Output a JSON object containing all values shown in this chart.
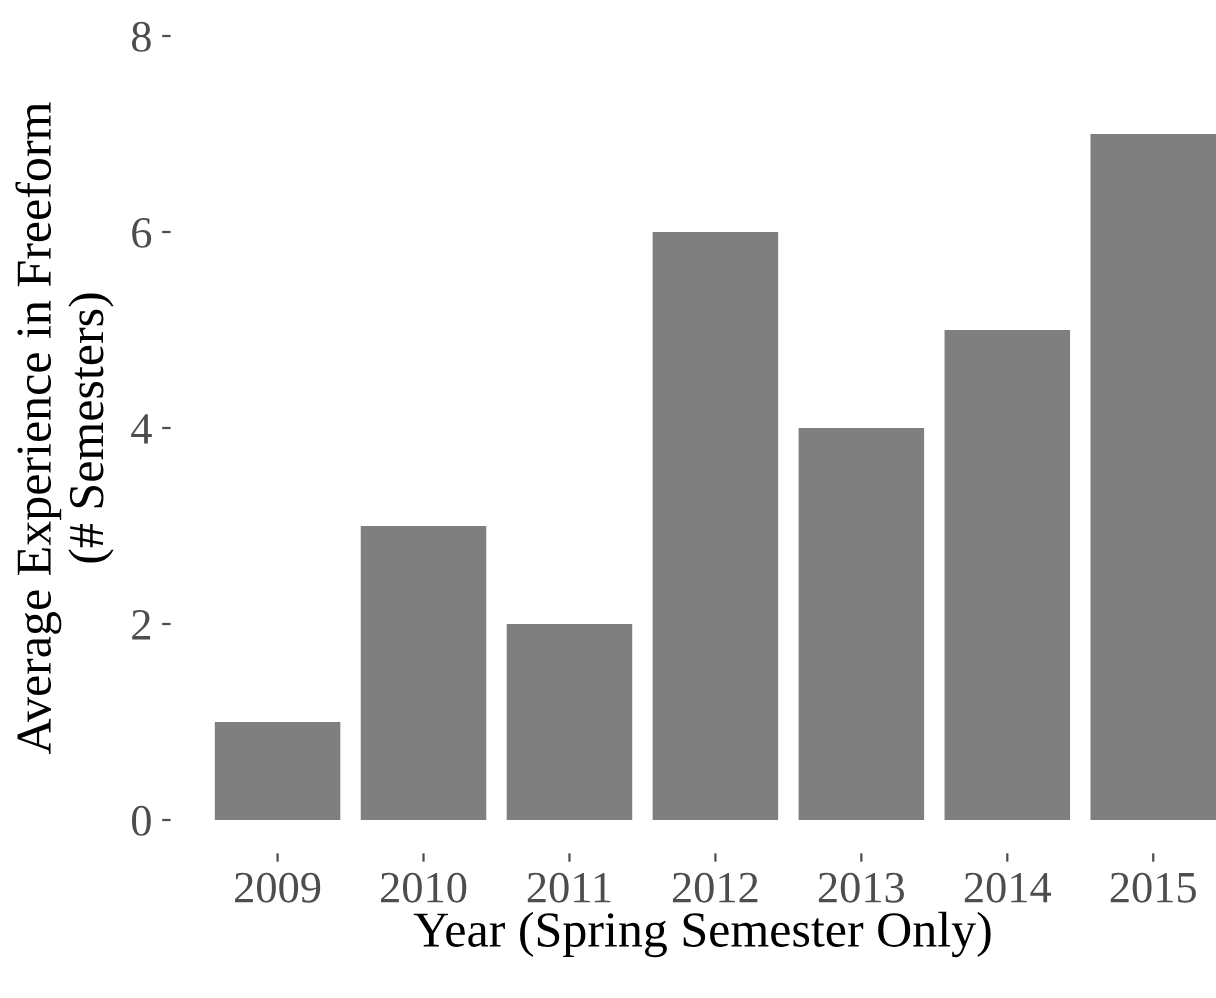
{
  "chart_data": {
    "type": "bar",
    "xlabel": "Year (Spring Semester Only)",
    "ylabel": "Average Experience in Freeform\n(# Semesters)",
    "categories": [
      "2009",
      "2010",
      "2011",
      "2012",
      "2013",
      "2014",
      "2015"
    ],
    "values": [
      1,
      3,
      2,
      6,
      4,
      5,
      7
    ],
    "color": "#7f7f7f",
    "ylim": [
      0,
      8
    ],
    "yticks": [
      0,
      2,
      4,
      6,
      8
    ],
    "grid": false,
    "legend": false
  }
}
